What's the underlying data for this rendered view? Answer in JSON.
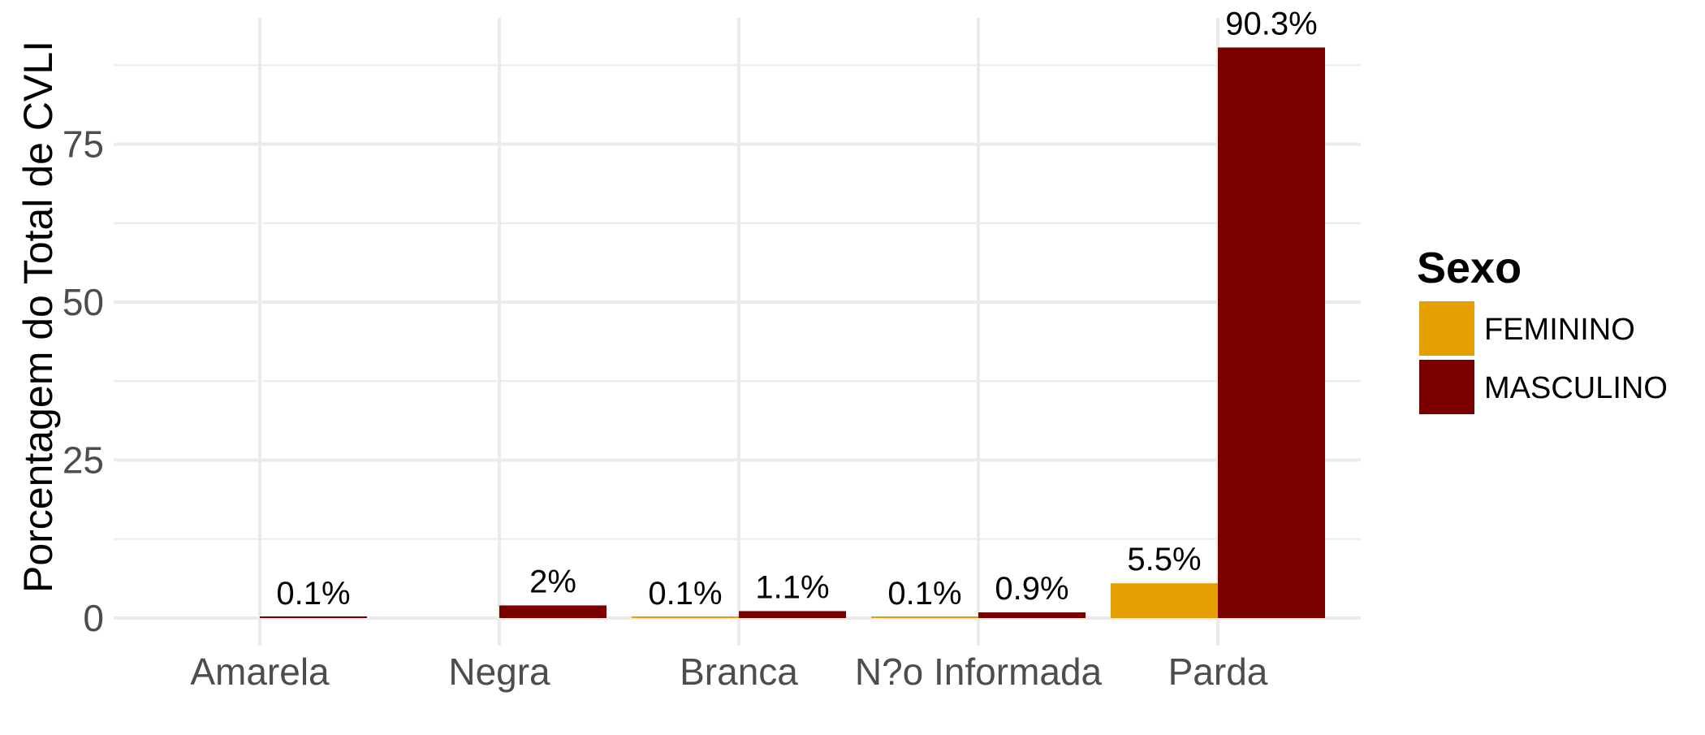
{
  "chart_data": {
    "type": "bar",
    "title": "",
    "xlabel": "",
    "ylabel": "Porcentagem do Total de CVLI",
    "categories": [
      "Amarela",
      "Negra",
      "Branca",
      "N?o Informada",
      "Parda"
    ],
    "series": [
      {
        "name": "FEMININO",
        "color": "#E69F00",
        "values": [
          null,
          null,
          0.1,
          0.1,
          5.5
        ],
        "labels": [
          null,
          null,
          "0.1%",
          "0.1%",
          "5.5%"
        ]
      },
      {
        "name": "MASCULINO",
        "color": "#7A0000",
        "values": [
          0.1,
          2.0,
          1.1,
          0.9,
          90.3
        ],
        "labels": [
          "0.1%",
          "2%",
          "1.1%",
          "0.9%",
          "90.3%"
        ]
      }
    ],
    "ylim": [
      0,
      95
    ],
    "yticks": [
      0,
      25,
      50,
      75
    ],
    "ytick_labels": [
      "0",
      "25",
      "50",
      "75"
    ],
    "grid": true,
    "legend": {
      "title": "Sexo",
      "position": "right",
      "entries": [
        "FEMININO",
        "MASCULINO"
      ]
    }
  }
}
